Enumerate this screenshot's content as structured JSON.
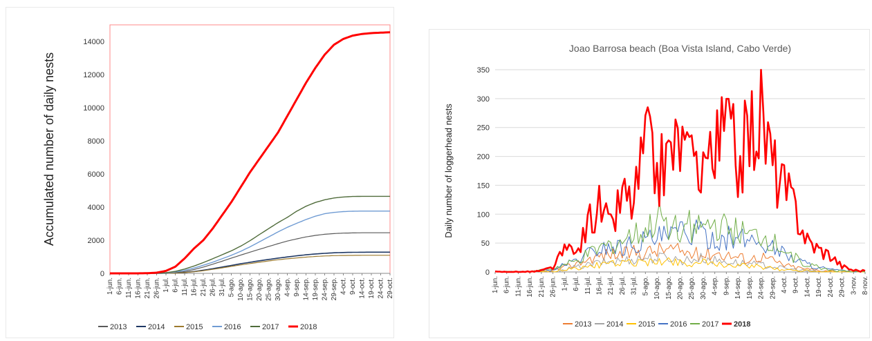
{
  "chart_data": [
    {
      "type": "line",
      "title": "",
      "xlabel": "",
      "ylabel": "Accumulated number of daily nests",
      "ylim": [
        0,
        15000
      ],
      "yticks": [
        0,
        2000,
        4000,
        6000,
        8000,
        10000,
        12000,
        14000
      ],
      "xticks": [
        "1-jun.",
        "6-jun.",
        "11-jun.",
        "16-jun.",
        "21-jun.",
        "26-jun.",
        "1-jul.",
        "6-jul.",
        "11-jul.",
        "16-jul.",
        "21-jul.",
        "26-jul.",
        "31-jul.",
        "5-ago.",
        "10-ago.",
        "15-ago.",
        "20-ago.",
        "25-ago.",
        "30-ago.",
        "4-sep.",
        "9-sep.",
        "14-sep.",
        "19-sep.",
        "24-sep.",
        "29-sep.",
        "4-oct.",
        "9-oct.",
        "14-oct.",
        "19-oct.",
        "24-oct.",
        "29-oct."
      ],
      "legend_position": "bottom",
      "grid": false,
      "series": [
        {
          "name": "2013",
          "color": "#595959",
          "width": 1.2,
          "values": [
            0,
            0,
            0,
            0,
            0,
            5,
            15,
            45,
            110,
            230,
            380,
            550,
            730,
            920,
            1100,
            1280,
            1450,
            1620,
            1790,
            1950,
            2080,
            2200,
            2290,
            2360,
            2400,
            2430,
            2440,
            2450,
            2450,
            2450,
            2450
          ]
        },
        {
          "name": "2014",
          "color": "#1f3864",
          "width": 1.6,
          "values": [
            0,
            0,
            0,
            0,
            0,
            2,
            8,
            25,
            55,
            110,
            190,
            280,
            380,
            480,
            580,
            670,
            760,
            840,
            920,
            990,
            1060,
            1120,
            1170,
            1210,
            1240,
            1260,
            1270,
            1275,
            1280,
            1280,
            1280
          ]
        },
        {
          "name": "2015",
          "color": "#9c7a2e",
          "width": 1.2,
          "values": [
            0,
            0,
            0,
            0,
            0,
            2,
            8,
            22,
            50,
            95,
            160,
            240,
            330,
            420,
            510,
            590,
            670,
            750,
            820,
            880,
            930,
            980,
            1020,
            1050,
            1070,
            1080,
            1085,
            1090,
            1090,
            1090,
            1090
          ]
        },
        {
          "name": "2016",
          "color": "#6f9bd3",
          "width": 1.4,
          "values": [
            0,
            0,
            0,
            0,
            0,
            5,
            25,
            80,
            180,
            320,
            490,
            670,
            880,
            1090,
            1330,
            1600,
            1900,
            2200,
            2500,
            2780,
            3020,
            3250,
            3450,
            3600,
            3680,
            3730,
            3750,
            3760,
            3760,
            3760,
            3760
          ]
        },
        {
          "name": "2017",
          "color": "#4f6b3a",
          "width": 1.4,
          "values": [
            0,
            0,
            0,
            0,
            0,
            8,
            40,
            120,
            260,
            440,
            650,
            880,
            1120,
            1360,
            1640,
            1970,
            2340,
            2700,
            3060,
            3380,
            3750,
            4050,
            4280,
            4440,
            4550,
            4610,
            4640,
            4650,
            4650,
            4650,
            4650
          ]
        },
        {
          "name": "2018",
          "color": "#ff0000",
          "width": 3,
          "values": [
            0,
            0,
            0,
            0,
            10,
            40,
            150,
            400,
            900,
            1500,
            2000,
            2700,
            3500,
            4300,
            5200,
            6100,
            6900,
            7700,
            8500,
            9500,
            10500,
            11500,
            12400,
            13200,
            13800,
            14150,
            14350,
            14450,
            14500,
            14530,
            14550
          ]
        }
      ]
    },
    {
      "type": "line",
      "title": "Joao Barrosa beach (Boa Vista Island, Cabo Verde)",
      "xlabel": "",
      "ylabel": "Daily number of loggerhead nests",
      "ylim": [
        0,
        350
      ],
      "yticks": [
        0,
        50,
        100,
        150,
        200,
        250,
        300,
        350
      ],
      "xticks": [
        "1-jun.",
        "6-jun.",
        "11-jun.",
        "16-jun.",
        "21-jun.",
        "26-jun.",
        "1-jul.",
        "6-jul.",
        "11-jul.",
        "16-jul.",
        "21-jul.",
        "26-jul.",
        "31-jul.",
        "5-ago.",
        "10-ago.",
        "15-ago.",
        "20-ago.",
        "25-ago.",
        "30-ago.",
        "4-sep.",
        "9-sep.",
        "14-sep.",
        "19-sep.",
        "24-sep.",
        "29-sep.",
        "4-oct.",
        "9-oct.",
        "14-oct.",
        "19-oct.",
        "24-oct.",
        "29-oct.",
        "3-nov.",
        "8-nov."
      ],
      "legend_position": "bottom",
      "grid": true,
      "series": [
        {
          "name": "2013",
          "color": "#ed7d31",
          "width": 1,
          "values": [
            0,
            0,
            0,
            0,
            1,
            3,
            8,
            14,
            22,
            28,
            32,
            30,
            35,
            34,
            38,
            40,
            36,
            32,
            30,
            34,
            30,
            26,
            22,
            28,
            20,
            12,
            8,
            5,
            3,
            2,
            0,
            0,
            0
          ]
        },
        {
          "name": "2014",
          "color": "#a5a5a5",
          "width": 1,
          "values": [
            0,
            0,
            0,
            0,
            1,
            2,
            5,
            8,
            12,
            16,
            18,
            20,
            22,
            25,
            24,
            26,
            20,
            22,
            24,
            20,
            18,
            16,
            14,
            12,
            10,
            6,
            4,
            2,
            1,
            0,
            0,
            0,
            0
          ]
        },
        {
          "name": "2015",
          "color": "#ffc000",
          "width": 1,
          "values": [
            0,
            0,
            0,
            0,
            0,
            2,
            4,
            6,
            9,
            12,
            14,
            16,
            15,
            18,
            16,
            20,
            18,
            14,
            16,
            12,
            14,
            10,
            12,
            8,
            6,
            4,
            3,
            2,
            1,
            0,
            0,
            0,
            0
          ]
        },
        {
          "name": "2016",
          "color": "#4472c4",
          "width": 1,
          "values": [
            0,
            0,
            0,
            0,
            2,
            5,
            12,
            20,
            32,
            40,
            45,
            42,
            50,
            55,
            58,
            60,
            68,
            70,
            62,
            58,
            60,
            54,
            58,
            50,
            44,
            32,
            22,
            14,
            8,
            4,
            2,
            0,
            0
          ]
        },
        {
          "name": "2017",
          "color": "#70ad47",
          "width": 1,
          "values": [
            0,
            0,
            0,
            0,
            3,
            6,
            12,
            18,
            30,
            40,
            48,
            55,
            62,
            68,
            90,
            85,
            80,
            78,
            75,
            80,
            72,
            68,
            60,
            62,
            50,
            38,
            24,
            14,
            8,
            4,
            2,
            0,
            0
          ]
        },
        {
          "name": "2018",
          "color": "#ff0000",
          "width": 2.6,
          "values": [
            0,
            0,
            0,
            0,
            2,
            8,
            38,
            30,
            80,
            115,
            75,
            135,
            120,
            230,
            170,
            205,
            230,
            175,
            210,
            195,
            260,
            190,
            245,
            280,
            190,
            145,
            110,
            55,
            40,
            30,
            10,
            3,
            2
          ]
        }
      ]
    }
  ]
}
